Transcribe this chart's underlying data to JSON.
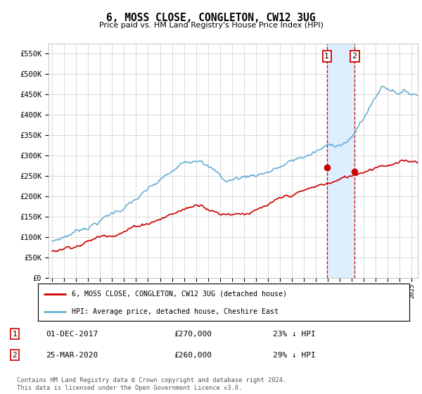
{
  "title": "6, MOSS CLOSE, CONGLETON, CW12 3UG",
  "subtitle": "Price paid vs. HM Land Registry's House Price Index (HPI)",
  "hpi_color": "#6ab0d4",
  "price_color": "#cc0000",
  "background_color": "#ffffff",
  "grid_color": "#cccccc",
  "highlight_color": "#ddeeff",
  "ylim": [
    0,
    575000
  ],
  "yticks": [
    0,
    50000,
    100000,
    150000,
    200000,
    250000,
    300000,
    350000,
    400000,
    450000,
    500000,
    550000
  ],
  "xlim_start": 1994.7,
  "xlim_end": 2025.5,
  "legend_label_price": "6, MOSS CLOSE, CONGLETON, CW12 3UG (detached house)",
  "legend_label_hpi": "HPI: Average price, detached house, Cheshire East",
  "point1_x": 2017.92,
  "point1_y": 270000,
  "point2_x": 2020.23,
  "point2_y": 260000,
  "vline_x1": 2017.92,
  "vline_x2": 2020.23,
  "footer": "Contains HM Land Registry data © Crown copyright and database right 2024.\nThis data is licensed under the Open Government Licence v3.0."
}
